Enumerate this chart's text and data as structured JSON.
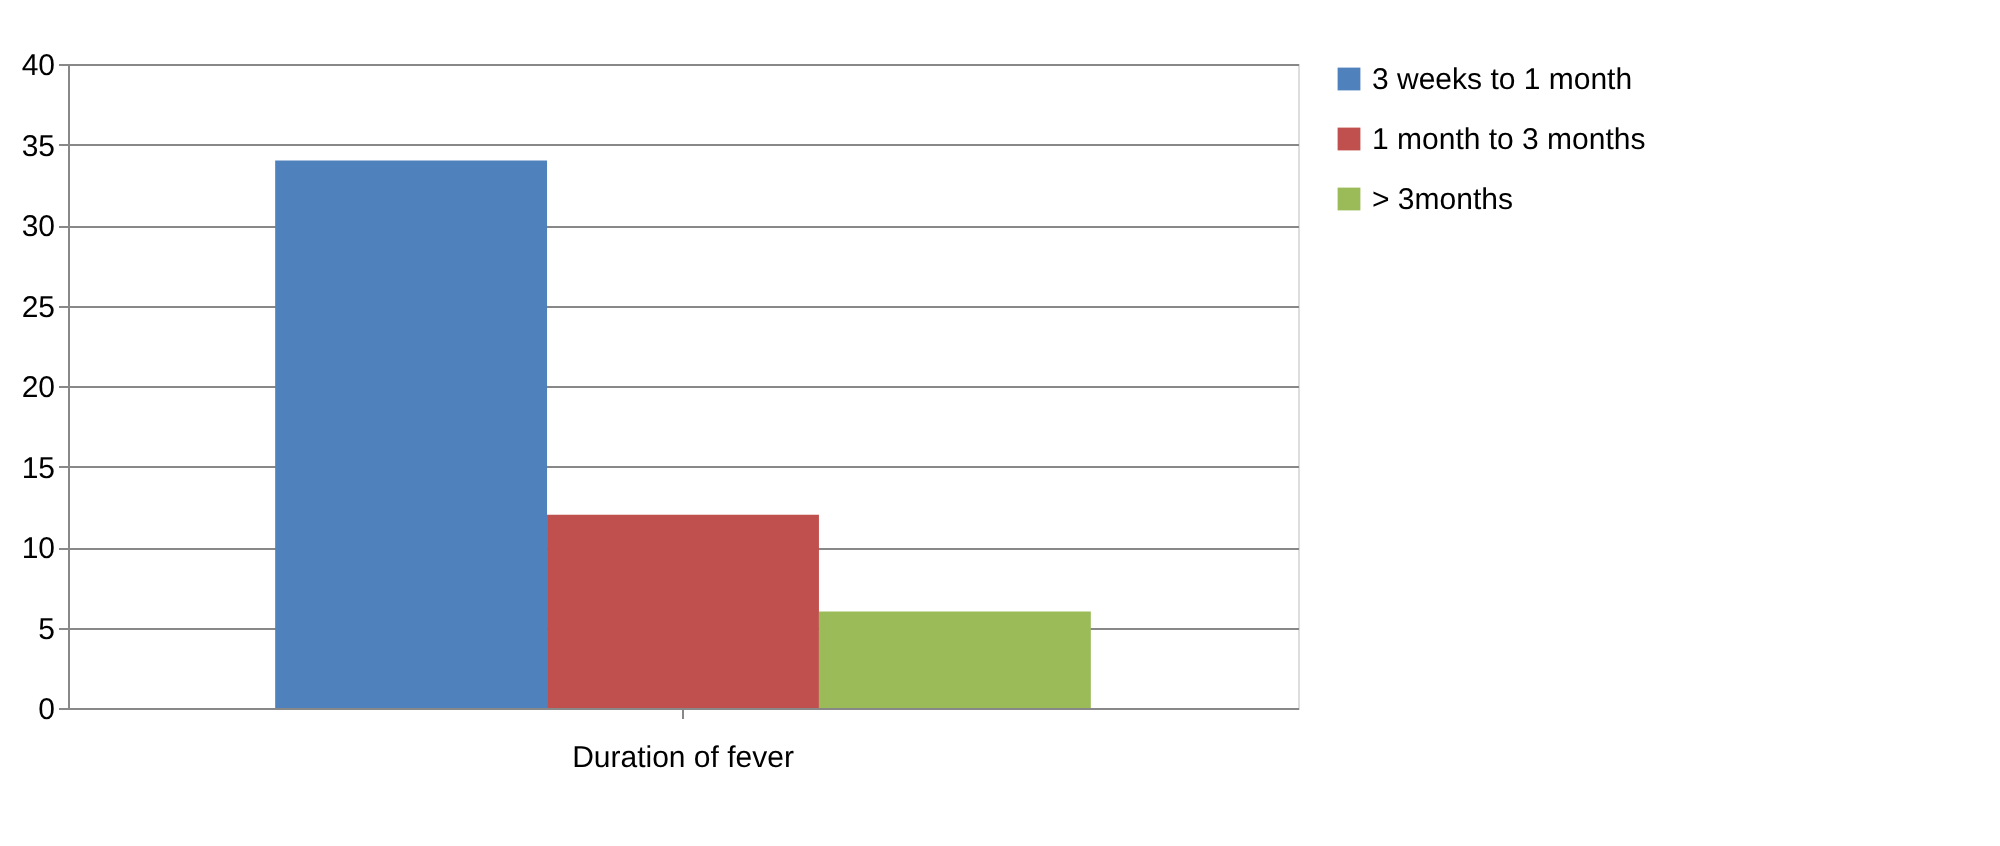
{
  "chart_data": {
    "type": "bar",
    "categories": [
      "Duration of fever"
    ],
    "series": [
      {
        "name": "3 weeks to 1 month",
        "color": "#4f81bd",
        "values": [
          34
        ]
      },
      {
        "name": "1 month to 3 months",
        "color": "#c0504d",
        "values": [
          12
        ]
      },
      {
        "name": "> 3months",
        "color": "#9bbb59",
        "values": [
          6
        ]
      }
    ],
    "ylim": [
      0,
      40
    ],
    "yticks": [
      0,
      5,
      10,
      15,
      20,
      25,
      30,
      35,
      40
    ],
    "grid": "y",
    "legend": "right"
  }
}
